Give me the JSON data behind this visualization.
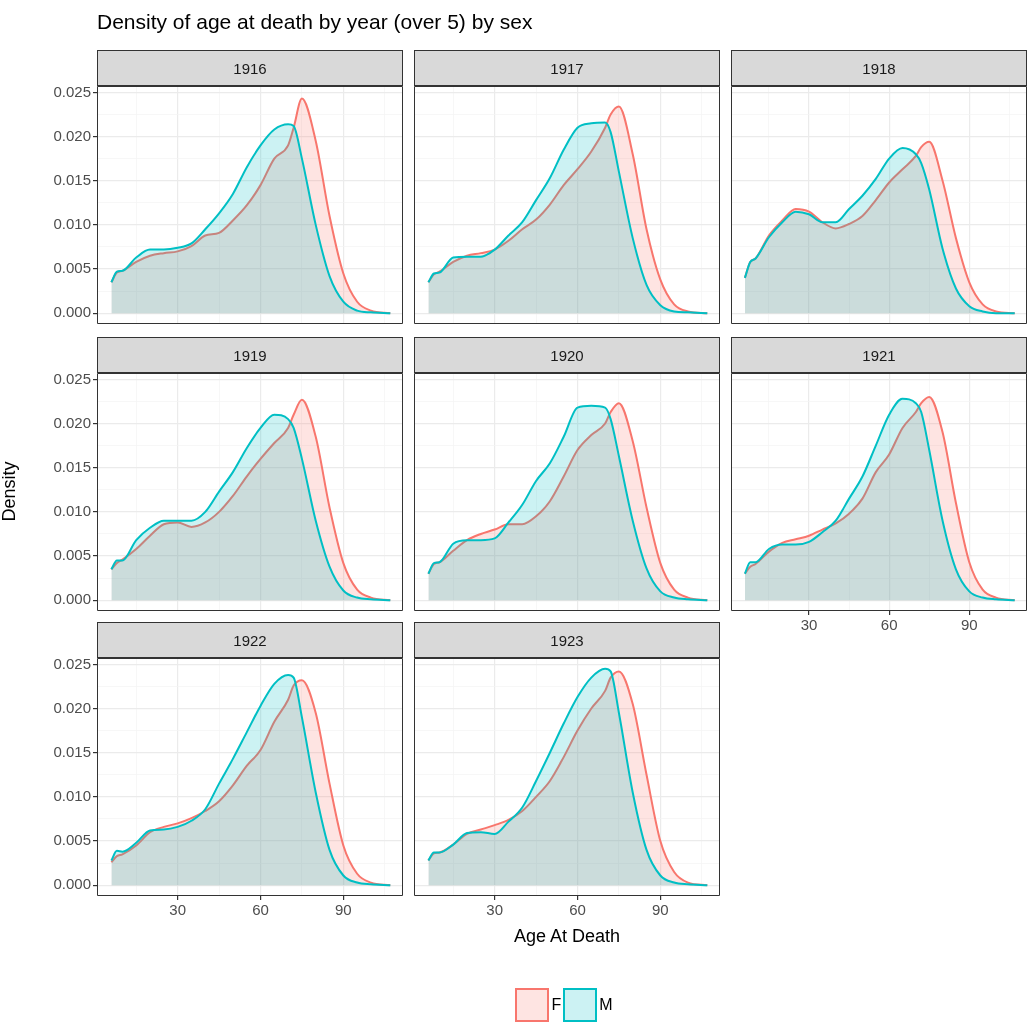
{
  "chart_data": [
    {
      "type": "area",
      "title": "Density of age at death by year (over 5) by sex",
      "subtitle": "1916",
      "legend": "bottom",
      "grid": true,
      "tick_labels": "y",
      "xlim": [
        0.8,
        111.6
      ],
      "xticks": [
        30,
        60,
        90
      ],
      "ylim": [
        -0.00122,
        0.02572
      ],
      "yticks": [
        {
          "value": 0,
          "label": "0.000"
        },
        {
          "value": 0.005,
          "label": "0.005"
        },
        {
          "value": 0.01,
          "label": "0.010"
        },
        {
          "value": 0.015,
          "label": "0.015"
        },
        {
          "value": 0.02,
          "label": "0.020"
        },
        {
          "value": 0.025,
          "label": "0.025"
        }
      ],
      "x": [
        6,
        8,
        10,
        15,
        20,
        25,
        30,
        35,
        40,
        45,
        50,
        55,
        60,
        65,
        70,
        72,
        75,
        80,
        85,
        90,
        95,
        100,
        107
      ],
      "series": [
        {
          "name": "F",
          "color": "#f8766d",
          "values": [
            0.0035,
            0.0046,
            0.0048,
            0.0058,
            0.0065,
            0.0068,
            0.007,
            0.0076,
            0.0088,
            0.0091,
            0.0105,
            0.0122,
            0.0145,
            0.0175,
            0.019,
            0.021,
            0.0243,
            0.0195,
            0.011,
            0.0045,
            0.0013,
            0.0003,
            0
          ]
        },
        {
          "name": "M",
          "color": "#00bfc4",
          "values": [
            0.0035,
            0.0047,
            0.0048,
            0.0063,
            0.0072,
            0.0072,
            0.0074,
            0.0079,
            0.0095,
            0.0113,
            0.0135,
            0.0165,
            0.019,
            0.0208,
            0.0214,
            0.0212,
            0.0175,
            0.01,
            0.0042,
            0.0013,
            0.0003,
            0.0001,
            0
          ]
        }
      ]
    },
    {
      "type": "area",
      "subtitle": "1917",
      "grid": true,
      "tick_labels": false,
      "xlim": [
        0.8,
        111.6
      ],
      "xticks": [
        30,
        60,
        90
      ],
      "ylim": [
        -0.00122,
        0.02572
      ],
      "yticks": [
        0,
        0.005,
        0.01,
        0.015,
        0.02,
        0.025
      ],
      "x": [
        6,
        8,
        10,
        15,
        20,
        25,
        30,
        35,
        40,
        45,
        50,
        55,
        60,
        65,
        70,
        72,
        75,
        80,
        85,
        90,
        95,
        100,
        107
      ],
      "series": [
        {
          "color": "#f8766d",
          "values": [
            0.0035,
            0.0044,
            0.0047,
            0.0058,
            0.0065,
            0.0068,
            0.0072,
            0.0082,
            0.0095,
            0.0106,
            0.0123,
            0.0145,
            0.0163,
            0.0183,
            0.021,
            0.0225,
            0.0234,
            0.018,
            0.0095,
            0.0038,
            0.001,
            0.0002,
            0
          ]
        },
        {
          "color": "#00bfc4",
          "values": [
            0.0035,
            0.0045,
            0.0046,
            0.0063,
            0.0064,
            0.0064,
            0.0072,
            0.0088,
            0.0103,
            0.0128,
            0.0153,
            0.0185,
            0.021,
            0.0215,
            0.0216,
            0.0205,
            0.016,
            0.0085,
            0.0032,
            0.0009,
            0.0002,
            0.0001,
            0
          ]
        }
      ]
    },
    {
      "type": "area",
      "subtitle": "1918",
      "grid": true,
      "tick_labels": false,
      "xlim": [
        0.8,
        111.6
      ],
      "xticks": [
        30,
        60,
        90
      ],
      "ylim": [
        -0.00122,
        0.02572
      ],
      "yticks": [
        0,
        0.005,
        0.01,
        0.015,
        0.02,
        0.025
      ],
      "x": [
        6,
        8,
        10,
        15,
        20,
        25,
        30,
        35,
        40,
        45,
        50,
        55,
        60,
        65,
        70,
        72,
        75,
        80,
        85,
        90,
        95,
        100,
        107
      ],
      "series": [
        {
          "color": "#f8766d",
          "values": [
            0.004,
            0.0058,
            0.0062,
            0.0088,
            0.0105,
            0.0118,
            0.0115,
            0.0103,
            0.0096,
            0.0101,
            0.011,
            0.0128,
            0.0148,
            0.0163,
            0.0178,
            0.0188,
            0.0194,
            0.015,
            0.0085,
            0.0035,
            0.001,
            0.0002,
            0
          ]
        },
        {
          "color": "#00bfc4",
          "values": [
            0.004,
            0.0058,
            0.0062,
            0.0086,
            0.0103,
            0.0115,
            0.0112,
            0.0103,
            0.0103,
            0.0118,
            0.0133,
            0.0152,
            0.0175,
            0.0187,
            0.018,
            0.017,
            0.014,
            0.0073,
            0.0028,
            0.0008,
            0.0002,
            0,
            0
          ]
        }
      ]
    },
    {
      "type": "area",
      "subtitle": "1919",
      "ylabel": "Density",
      "grid": true,
      "tick_labels": "y",
      "xlim": [
        0.8,
        111.6
      ],
      "xticks": [
        30,
        60,
        90
      ],
      "ylim": [
        -0.00122,
        0.02572
      ],
      "yticks": [
        {
          "value": 0,
          "label": "0.000"
        },
        {
          "value": 0.005,
          "label": "0.005"
        },
        {
          "value": 0.01,
          "label": "0.010"
        },
        {
          "value": 0.015,
          "label": "0.015"
        },
        {
          "value": 0.02,
          "label": "0.020"
        },
        {
          "value": 0.025,
          "label": "0.025"
        }
      ],
      "x": [
        6,
        8,
        10,
        15,
        20,
        25,
        30,
        35,
        40,
        45,
        50,
        55,
        60,
        65,
        70,
        72,
        75,
        80,
        85,
        90,
        95,
        100,
        107
      ],
      "series": [
        {
          "color": "#f8766d",
          "values": [
            0.0035,
            0.0042,
            0.0046,
            0.0058,
            0.0073,
            0.0086,
            0.0088,
            0.0083,
            0.0088,
            0.01,
            0.0118,
            0.014,
            0.016,
            0.0178,
            0.0195,
            0.021,
            0.0227,
            0.0185,
            0.0105,
            0.0042,
            0.0012,
            0.0003,
            0
          ]
        },
        {
          "color": "#00bfc4",
          "values": [
            0.0035,
            0.0045,
            0.0045,
            0.0068,
            0.0082,
            0.009,
            0.009,
            0.009,
            0.01,
            0.0123,
            0.0145,
            0.0172,
            0.0195,
            0.021,
            0.0205,
            0.0195,
            0.016,
            0.009,
            0.0038,
            0.0011,
            0.0003,
            0.0001,
            0
          ]
        }
      ]
    },
    {
      "type": "area",
      "subtitle": "1920",
      "grid": true,
      "tick_labels": false,
      "xlim": [
        0.8,
        111.6
      ],
      "xticks": [
        30,
        60,
        90
      ],
      "ylim": [
        -0.00122,
        0.02572
      ],
      "yticks": [
        0,
        0.005,
        0.01,
        0.015,
        0.02,
        0.025
      ],
      "x": [
        6,
        8,
        10,
        15,
        20,
        25,
        30,
        35,
        40,
        45,
        50,
        55,
        60,
        65,
        70,
        72,
        75,
        80,
        85,
        90,
        95,
        100,
        107
      ],
      "series": [
        {
          "color": "#f8766d",
          "values": [
            0.003,
            0.0041,
            0.0043,
            0.0056,
            0.0068,
            0.0075,
            0.008,
            0.0086,
            0.0086,
            0.0095,
            0.0112,
            0.014,
            0.017,
            0.0187,
            0.02,
            0.0213,
            0.0223,
            0.018,
            0.0105,
            0.0042,
            0.0012,
            0.0003,
            0
          ]
        },
        {
          "color": "#00bfc4",
          "values": [
            0.003,
            0.0042,
            0.0043,
            0.0064,
            0.0068,
            0.0068,
            0.007,
            0.0088,
            0.0108,
            0.0135,
            0.0155,
            0.0185,
            0.0218,
            0.022,
            0.0218,
            0.0205,
            0.0163,
            0.009,
            0.0036,
            0.001,
            0.0003,
            0.0001,
            0
          ]
        }
      ]
    },
    {
      "type": "area",
      "subtitle": "1921",
      "grid": true,
      "tick_labels": "x",
      "xlim": [
        0.8,
        111.6
      ],
      "xticks": [
        30,
        60,
        90
      ],
      "ylim": [
        -0.00122,
        0.02572
      ],
      "yticks": [
        0,
        0.005,
        0.01,
        0.015,
        0.02,
        0.025
      ],
      "x": [
        6,
        8,
        10,
        15,
        20,
        25,
        30,
        35,
        40,
        45,
        50,
        55,
        60,
        65,
        70,
        72,
        75,
        80,
        85,
        90,
        95,
        100,
        107
      ],
      "series": [
        {
          "color": "#f8766d",
          "values": [
            0.003,
            0.0038,
            0.0041,
            0.0055,
            0.0065,
            0.0069,
            0.0073,
            0.008,
            0.0087,
            0.0098,
            0.0115,
            0.0145,
            0.0165,
            0.0195,
            0.0213,
            0.0223,
            0.023,
            0.019,
            0.011,
            0.0043,
            0.0012,
            0.0003,
            0
          ]
        },
        {
          "color": "#00bfc4",
          "values": [
            0.003,
            0.0043,
            0.0043,
            0.0058,
            0.0063,
            0.0063,
            0.0066,
            0.0077,
            0.009,
            0.0115,
            0.014,
            0.0175,
            0.021,
            0.0228,
            0.0223,
            0.0213,
            0.017,
            0.009,
            0.0035,
            0.001,
            0.0003,
            0.0001,
            0
          ]
        }
      ]
    },
    {
      "type": "area",
      "subtitle": "1922",
      "grid": true,
      "xlim": [
        0.8,
        111.6
      ],
      "xticks": [
        30,
        60,
        90
      ],
      "ylim": [
        -0.00122,
        0.02572
      ],
      "yticks": [
        {
          "value": 0,
          "label": "0.000"
        },
        {
          "value": 0.005,
          "label": "0.005"
        },
        {
          "value": 0.01,
          "label": "0.010"
        },
        {
          "value": 0.015,
          "label": "0.015"
        },
        {
          "value": 0.02,
          "label": "0.020"
        },
        {
          "value": 0.025,
          "label": "0.025"
        }
      ],
      "x": [
        6,
        8,
        10,
        15,
        20,
        25,
        30,
        35,
        40,
        45,
        50,
        55,
        60,
        65,
        70,
        72,
        75,
        80,
        85,
        90,
        95,
        100,
        107
      ],
      "series": [
        {
          "color": "#f8766d",
          "values": [
            0.0026,
            0.0033,
            0.0035,
            0.0045,
            0.006,
            0.0066,
            0.007,
            0.0076,
            0.0084,
            0.0095,
            0.0113,
            0.0135,
            0.0153,
            0.0185,
            0.021,
            0.0226,
            0.0232,
            0.0195,
            0.0115,
            0.0045,
            0.0013,
            0.0003,
            0
          ]
        },
        {
          "color": "#00bfc4",
          "values": [
            0.0028,
            0.0039,
            0.0038,
            0.0048,
            0.0062,
            0.0063,
            0.0066,
            0.0073,
            0.0086,
            0.0115,
            0.0143,
            0.0173,
            0.0203,
            0.0228,
            0.0238,
            0.0235,
            0.019,
            0.0105,
            0.004,
            0.0011,
            0.0003,
            0.0001,
            0
          ]
        }
      ]
    },
    {
      "type": "area",
      "subtitle": "1923",
      "xlabel": "Age At Death",
      "grid": true,
      "tick_labels": "x",
      "xlim": [
        0.8,
        111.6
      ],
      "xticks": [
        30,
        60,
        90
      ],
      "ylim": [
        -0.00122,
        0.02572
      ],
      "yticks": [
        0,
        0.005,
        0.01,
        0.015,
        0.02,
        0.025
      ],
      "x": [
        6,
        8,
        10,
        15,
        20,
        25,
        30,
        35,
        40,
        45,
        50,
        55,
        60,
        65,
        70,
        72,
        75,
        80,
        85,
        90,
        95,
        100,
        107
      ],
      "series": [
        {
          "color": "#f8766d",
          "values": [
            0.0028,
            0.0036,
            0.0037,
            0.0046,
            0.0058,
            0.0063,
            0.0068,
            0.0074,
            0.0084,
            0.01,
            0.0118,
            0.0145,
            0.0175,
            0.02,
            0.022,
            0.0235,
            0.0242,
            0.0205,
            0.0125,
            0.005,
            0.0015,
            0.0003,
            0
          ]
        },
        {
          "color": "#00bfc4",
          "values": [
            0.0028,
            0.0037,
            0.0037,
            0.0046,
            0.0059,
            0.006,
            0.0058,
            0.0072,
            0.0088,
            0.0118,
            0.015,
            0.0183,
            0.0213,
            0.0235,
            0.0245,
            0.0242,
            0.0195,
            0.0105,
            0.004,
            0.0011,
            0.0003,
            0.0001,
            0
          ]
        }
      ]
    }
  ]
}
